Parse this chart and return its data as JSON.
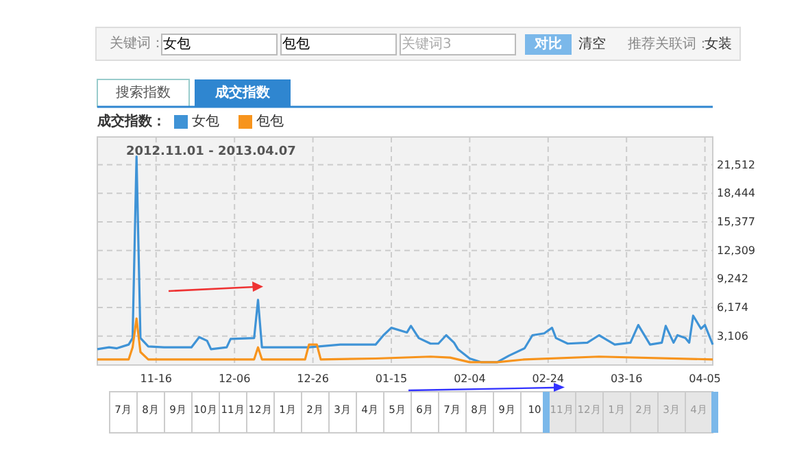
{
  "chart_data": {
    "type": "line",
    "subtitle": "2012.11.01 - 2013.04.07",
    "legend_title": "成交指数：",
    "annotations": [
      "关键词：",
      "女包",
      "包包",
      "关键词3",
      "对比",
      "清空",
      "推荐关联词：",
      "女装",
      "搜索指数",
      "成交指数",
      "7月",
      "8月",
      "9月",
      "10月",
      "11月",
      "12月",
      "1月",
      "2月",
      "3月",
      "4月",
      "5月",
      "6月",
      "7月",
      "8月",
      "9月",
      "10",
      "11月",
      "12月",
      "1月",
      "2月",
      "3月",
      "4月"
    ],
    "xlim": [
      "2012-11-01",
      "2013-04-07"
    ],
    "ylim": [
      0,
      24500
    ],
    "xticks": [
      {
        "value": "2012-11-16",
        "label": "11-16"
      },
      {
        "value": "2012-12-06",
        "label": "12-06"
      },
      {
        "value": "2012-12-26",
        "label": "12-26"
      },
      {
        "value": "2013-01-15",
        "label": "01-15"
      },
      {
        "value": "2013-02-04",
        "label": "02-04"
      },
      {
        "value": "2013-02-24",
        "label": "02-24"
      },
      {
        "value": "2013-03-16",
        "label": "03-16"
      },
      {
        "value": "2013-04-05",
        "label": "04-05"
      }
    ],
    "yticks": [
      {
        "value": 3106,
        "label": "3,106"
      },
      {
        "value": 6174,
        "label": "6,174"
      },
      {
        "value": 9242,
        "label": "9,242"
      },
      {
        "value": 12309,
        "label": "12,309"
      },
      {
        "value": 15377,
        "label": "15,377"
      },
      {
        "value": 18444,
        "label": "18,444"
      },
      {
        "value": 21512,
        "label": "21,512"
      }
    ],
    "grid": true,
    "legend": "top left",
    "series": [
      {
        "name": "女包",
        "color": "#3f93d6",
        "x": [
          "2012-11-01",
          "2012-11-04",
          "2012-11-06",
          "2012-11-09",
          "2012-11-10",
          "2012-11-11",
          "2012-11-12",
          "2012-11-14",
          "2012-11-18",
          "2012-11-25",
          "2012-11-27",
          "2012-11-29",
          "2012-11-30",
          "2012-12-04",
          "2012-12-05",
          "2012-12-11",
          "2012-12-12",
          "2012-12-13",
          "2012-12-16",
          "2012-12-25",
          "2013-01-02",
          "2013-01-11",
          "2013-01-13",
          "2013-01-15",
          "2013-01-19",
          "2013-01-20",
          "2013-01-22",
          "2013-01-25",
          "2013-01-27",
          "2013-01-29",
          "2013-01-31",
          "2013-02-01",
          "2013-02-04",
          "2013-02-07",
          "2013-02-11",
          "2013-02-14",
          "2013-02-18",
          "2013-02-20",
          "2013-02-23",
          "2013-02-25",
          "2013-02-26",
          "2013-03-01",
          "2013-03-06",
          "2013-03-09",
          "2013-03-11",
          "2013-03-13",
          "2013-03-17",
          "2013-03-19",
          "2013-03-22",
          "2013-03-25",
          "2013-03-26",
          "2013-03-28",
          "2013-03-29",
          "2013-03-31",
          "2013-04-01",
          "2013-04-02",
          "2013-04-04",
          "2013-04-05",
          "2013-04-07"
        ],
        "values": [
          1700,
          1900,
          1800,
          2200,
          2900,
          22400,
          2900,
          2000,
          1900,
          1900,
          3000,
          2600,
          1700,
          1900,
          2800,
          2900,
          7000,
          1900,
          1900,
          1900,
          2200,
          2200,
          3200,
          4000,
          3500,
          4200,
          2900,
          2300,
          2300,
          3200,
          2400,
          1700,
          700,
          300,
          300,
          1000,
          1800,
          3200,
          3400,
          4000,
          2900,
          2300,
          2400,
          3200,
          2700,
          2200,
          2400,
          4300,
          2200,
          2400,
          4200,
          2400,
          3200,
          2900,
          2400,
          5300,
          3900,
          4300,
          2200
        ]
      },
      {
        "name": "包包",
        "color": "#f7941d",
        "x": [
          "2012-11-01",
          "2012-11-09",
          "2012-11-10",
          "2012-11-11",
          "2012-11-12",
          "2012-11-14",
          "2012-12-11",
          "2012-12-12",
          "2012-12-13",
          "2012-12-24",
          "2012-12-25",
          "2012-12-27",
          "2012-12-28",
          "2013-01-11",
          "2013-01-25",
          "2013-01-30",
          "2013-02-04",
          "2013-02-11",
          "2013-02-18",
          "2013-03-09",
          "2013-04-07"
        ],
        "values": [
          600,
          600,
          1900,
          5000,
          1400,
          600,
          600,
          1900,
          600,
          600,
          2200,
          2200,
          600,
          700,
          900,
          800,
          300,
          300,
          600,
          900,
          600
        ]
      }
    ]
  }
}
